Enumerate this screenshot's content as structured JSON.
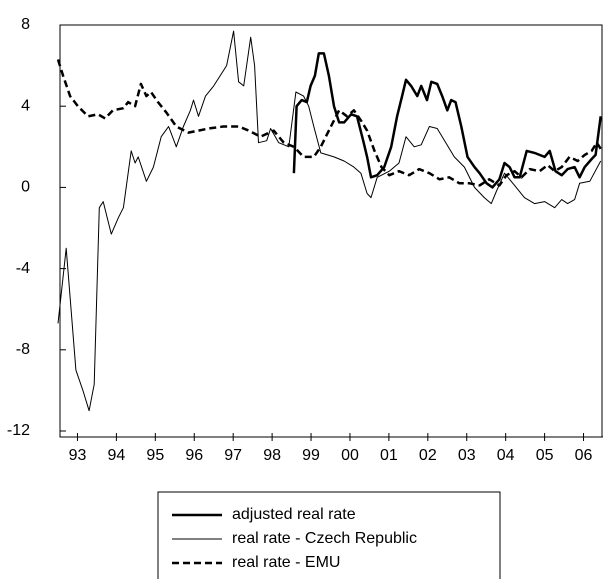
{
  "chart_data": {
    "type": "line",
    "xlim": [
      1993,
      2007
    ],
    "xticks": [
      {
        "value": 1993.5,
        "label": "93"
      },
      {
        "value": 1994.5,
        "label": "94"
      },
      {
        "value": 1995.5,
        "label": "95"
      },
      {
        "value": 1996.5,
        "label": "96"
      },
      {
        "value": 1997.5,
        "label": "97"
      },
      {
        "value": 1998.5,
        "label": "98"
      },
      {
        "value": 1999.5,
        "label": "99"
      },
      {
        "value": 2000.5,
        "label": "00"
      },
      {
        "value": 2001.5,
        "label": "01"
      },
      {
        "value": 2002.5,
        "label": "02"
      },
      {
        "value": 2003.5,
        "label": "03"
      },
      {
        "value": 2004.5,
        "label": "04"
      },
      {
        "value": 2005.5,
        "label": "05"
      },
      {
        "value": 2006.5,
        "label": "06"
      }
    ],
    "ylim": [
      -12,
      8
    ],
    "yticks": [
      -12,
      -8,
      -4,
      0,
      4,
      8
    ],
    "series": [
      {
        "name": "adjusted real rate",
        "color": "#000000",
        "style": "thick",
        "x": [
          1999.06,
          1999.13,
          1999.26,
          1999.39,
          1999.49,
          1999.6,
          1999.7,
          1999.83,
          1999.96,
          2000.09,
          2000.22,
          2000.35,
          2000.53,
          2000.68,
          2000.84,
          2000.94,
          2001.04,
          2001.2,
          2001.38,
          2001.56,
          2001.71,
          2001.84,
          2001.94,
          2002.07,
          2002.23,
          2002.33,
          2002.48,
          2002.59,
          2002.74,
          2002.87,
          2003.0,
          2003.1,
          2003.21,
          2003.36,
          2003.52,
          2003.7,
          2003.83,
          2004.01,
          2004.16,
          2004.34,
          2004.47,
          2004.6,
          2004.73,
          2004.86,
          2005.04,
          2005.24,
          2005.5,
          2005.63,
          2005.78,
          2005.94,
          2006.09,
          2006.27,
          2006.4,
          2006.53,
          2006.71,
          2006.81,
          2006.94
        ],
        "values": [
          0.7,
          4,
          4.3,
          4.2,
          5,
          5.5,
          6.6,
          6.6,
          5.5,
          4,
          3.2,
          3.2,
          3.6,
          3.5,
          2.3,
          1.5,
          0.5,
          0.6,
          1,
          2,
          3.5,
          4.5,
          5.3,
          5,
          4.5,
          5,
          4.3,
          5.2,
          5.1,
          4.5,
          3.8,
          4.3,
          4.2,
          3,
          1.5,
          1,
          0.7,
          0.2,
          0,
          0.4,
          1.2,
          1,
          0.5,
          0.5,
          1.8,
          1.7,
          1.5,
          1.8,
          0.8,
          0.6,
          0.9,
          1,
          0.5,
          1,
          1.4,
          1.6,
          3.5
        ]
      },
      {
        "name": "real rate - Czech Republic",
        "color": "#000000",
        "style": "thin",
        "x": [
          1993.0,
          1993.21,
          1993.46,
          1993.64,
          1993.8,
          1993.93,
          1994.06,
          1994.16,
          1994.37,
          1994.55,
          1994.68,
          1994.88,
          1994.98,
          1995.06,
          1995.27,
          1995.45,
          1995.65,
          1995.84,
          1996.04,
          1996.22,
          1996.4,
          1996.48,
          1996.61,
          1996.79,
          1997.0,
          1997.33,
          1997.51,
          1997.64,
          1997.77,
          1997.95,
          1998.05,
          1998.15,
          1998.36,
          1998.46,
          1998.67,
          1998.93,
          1999.11,
          1999.31,
          1999.44,
          1999.57,
          1999.75,
          2000.09,
          2000.35,
          2000.6,
          2000.78,
          2000.94,
          2001.04,
          2001.2,
          2001.51,
          2001.76,
          2001.94,
          2002.15,
          2002.33,
          2002.54,
          2002.74,
          2002.87,
          2003.18,
          2003.44,
          2003.7,
          2003.95,
          2004.13,
          2004.26,
          2004.47,
          2004.73,
          2004.98,
          2005.24,
          2005.5,
          2005.76,
          2005.94,
          2006.09,
          2006.27,
          2006.4,
          2006.66,
          2006.94
        ],
        "values": [
          -6.7,
          -3,
          -9,
          -10,
          -11,
          -9.7,
          -1,
          -0.7,
          -2.3,
          -1.5,
          -1,
          1.8,
          1.2,
          1.5,
          0.3,
          1,
          2.5,
          3,
          2,
          3,
          3.8,
          4.3,
          3.5,
          4.5,
          5,
          6,
          7.7,
          5.2,
          5,
          7.4,
          6,
          2.2,
          2.3,
          2.9,
          2.2,
          2,
          4.7,
          4.5,
          4,
          3,
          1.7,
          1.5,
          1.3,
          1,
          0.7,
          -0.3,
          -0.5,
          0.5,
          0.8,
          1.2,
          2.5,
          2,
          2.1,
          3,
          2.9,
          2.5,
          1.5,
          1,
          0,
          -0.5,
          -0.8,
          -0.2,
          0.7,
          0.1,
          -0.5,
          -0.8,
          -0.7,
          -1,
          -0.6,
          -0.8,
          -0.6,
          0.2,
          0.3,
          1.3
        ]
      },
      {
        "name": "real rate - EMU",
        "color": "#000000",
        "style": "dashed",
        "x": [
          1993.0,
          1993.13,
          1993.31,
          1993.51,
          1993.77,
          1994.03,
          1994.21,
          1994.41,
          1994.68,
          1994.8,
          1994.98,
          1995.13,
          1995.27,
          1995.39,
          1995.57,
          1995.78,
          1996.04,
          1996.35,
          1996.61,
          1996.87,
          1997.25,
          1997.64,
          1997.9,
          1998.2,
          1998.54,
          1998.8,
          1999.06,
          1999.31,
          1999.57,
          1999.75,
          2000.01,
          2000.22,
          2000.42,
          2000.6,
          2000.78,
          2000.94,
          2001.13,
          2001.31,
          2001.51,
          2001.76,
          2002.02,
          2002.28,
          2002.54,
          2002.8,
          2003.05,
          2003.31,
          2003.57,
          2003.83,
          2004.08,
          2004.34,
          2004.52,
          2004.73,
          2004.91,
          2005.12,
          2005.37,
          2005.58,
          2005.76,
          2005.94,
          2006.14,
          2006.35,
          2006.53,
          2006.71,
          2006.84,
          2006.94
        ],
        "values": [
          6.3,
          5.5,
          4.5,
          4,
          3.5,
          3.6,
          3.4,
          3.8,
          3.9,
          4.2,
          4,
          5.1,
          4.5,
          4.7,
          4.2,
          3.7,
          3,
          2.7,
          2.8,
          2.9,
          3,
          3,
          2.8,
          2.5,
          2.8,
          2.2,
          2,
          1.5,
          1.5,
          2,
          3,
          3.8,
          3.5,
          3.8,
          3.3,
          2.8,
          1.8,
          1,
          0.6,
          0.8,
          0.6,
          0.9,
          0.7,
          0.4,
          0.5,
          0.2,
          0.2,
          0.1,
          0.4,
          0.1,
          0.6,
          0.8,
          0.5,
          0.9,
          0.8,
          1.1,
          0.8,
          1,
          1.5,
          1.3,
          1.6,
          1.8,
          2.2,
          1.9
        ]
      }
    ]
  }
}
